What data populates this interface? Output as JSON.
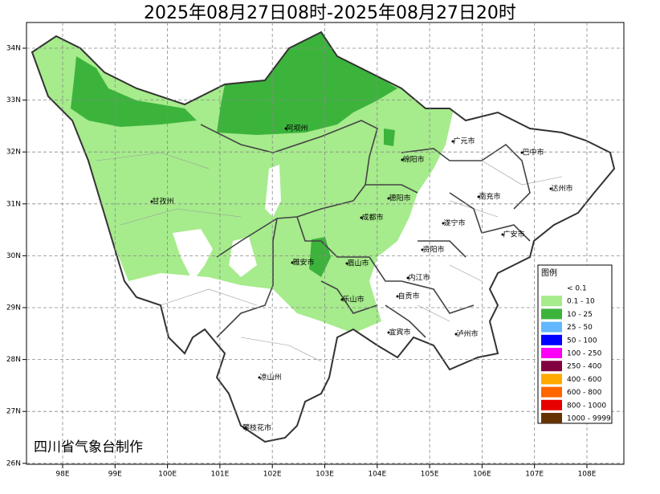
{
  "title": "2025年08月27日08时-2025年08月27日20时",
  "lon_labels": [
    "98E",
    "99E",
    "100E",
    "101E",
    "102E",
    "103E",
    "104E",
    "105E",
    "106E",
    "107E",
    "108E"
  ],
  "lat_labels": [
    "34N",
    "33N",
    "32N",
    "31N",
    "30N",
    "29N",
    "28N",
    "27N",
    "26N"
  ],
  "cities": [
    "阿坝州",
    "甘孜州",
    "广元市",
    "巴中市",
    "绵阳市",
    "达州市",
    "德阳市",
    "南充市",
    "成都市",
    "遂宁市",
    "广安市",
    "资阳市",
    "雅安市",
    "眉山市",
    "内江市",
    "乐山市",
    "自贡市",
    "宜宾市",
    "泸州市",
    "凉山州",
    "攀枝花市"
  ],
  "legend": {
    "title": "图例",
    "items": [
      {
        "label": "< 0.1",
        "color": "#ffffff"
      },
      {
        "label": "0.1 - 10",
        "color": "#a6eb8c"
      },
      {
        "label": "10 - 25",
        "color": "#3cb43c"
      },
      {
        "label": "25 - 50",
        "color": "#61b8ff"
      },
      {
        "label": "50 - 100",
        "color": "#0000ff"
      },
      {
        "label": "100 - 250",
        "color": "#fa00fa"
      },
      {
        "label": "250 - 400",
        "color": "#800040"
      },
      {
        "label": "400 - 600",
        "color": "#ffaa00"
      },
      {
        "label": "600 - 800",
        "color": "#ff6600"
      },
      {
        "label": "800 - 1000",
        "color": "#e60000"
      },
      {
        "label": "1000 - 9999",
        "color": "#663300"
      }
    ]
  },
  "credit": "四川省气象台制作"
}
